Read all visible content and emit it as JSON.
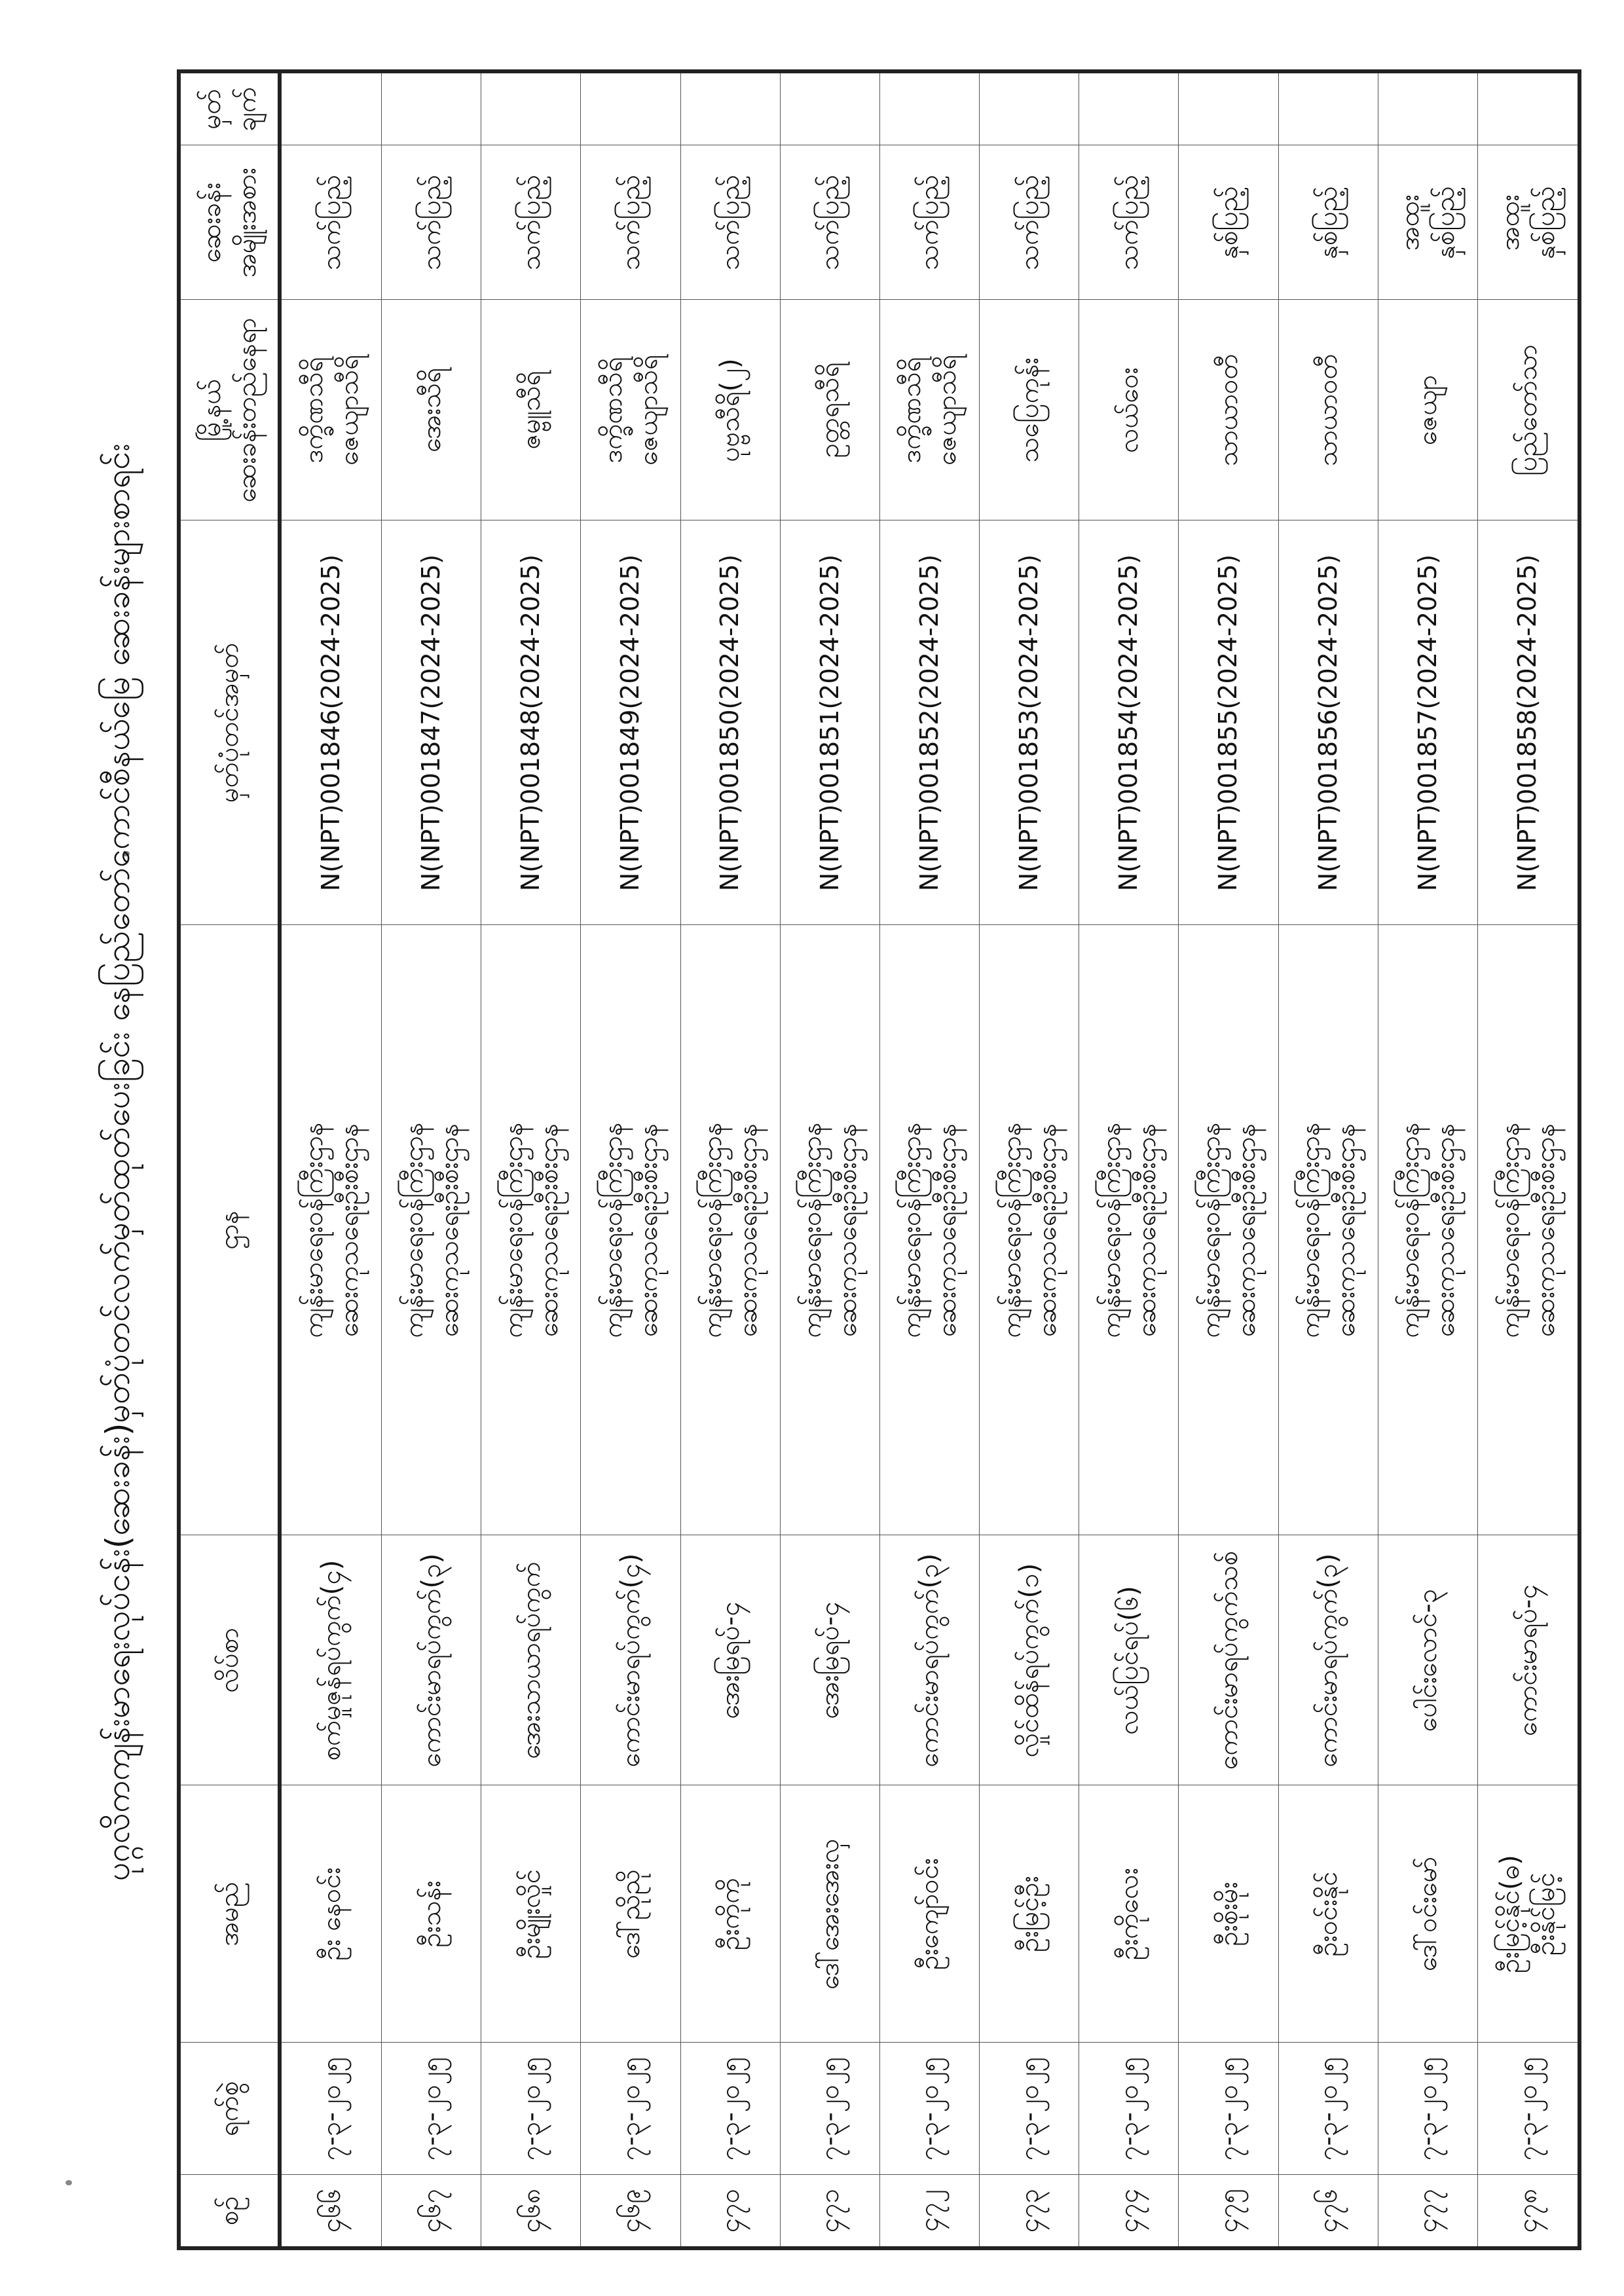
{
  "title": "ပုဂ္ဂလိကကျန်းမာရေးလုပ်ငန်း(ဆေးခန်း)မှတ်ပုံတင်လက်မှတ်ထုတ်ပေးခြင်း နေပြည်တော်ကောင်စီနယ်မြေ ဆေးခန်းများစာရင်း",
  "columns": [
    "စဉ်",
    "ရက်စွဲ",
    "အမည်",
    "လိပ်စာ",
    "ဌာန",
    "မှတ်ပုံတင်အမှတ်",
    "မြို့နယ်\nဆေးခန်းတည်နေရာ",
    "ဆေးခန်း\nအမျိုးအစား",
    "မှတ်\nချက်"
  ],
  "rows": [
    {
      "no": "၄၆၆",
      "date": "၇-၃-၂၀၂၅",
      "name": "ဦး နေဝင်း",
      "address": "စက်မှုဇုန်ရပ်ကွက်(၄)",
      "dept": "ကျန်းမာရေးဝန်ကြီးဌာန\nဆေးကုသရေးဦးစီးဌာန",
      "reg": "N(NPT)001846(2024-2025)",
      "township": "ဒက္ခိဏသီရိ\nဇေယျာသီရိ",
      "type": "သက်ပြည့်",
      "remark": ""
    },
    {
      "no": "၄၆၇",
      "date": "၇-၃-၂၀၂၅",
      "name": "ဦးသန်း",
      "address": "ကောင်းမာရပ်ကွက်(၃)",
      "dept": "ကျန်းမာရေးဝန်ကြီးဌာန\nဆေးကုသရေးဦးစီးဌာန",
      "reg": "N(NPT)001847(2024-2025)",
      "township": "အေးသီရိ",
      "type": "သက်ပြည့်",
      "remark": ""
    },
    {
      "no": "၄၆၈",
      "date": "၇-၃-၂၀၂၅",
      "name": "ဦးမျိုးလှိုင်",
      "address": "အေးသာယာရပ်ကွက်",
      "dept": "ကျန်းမာရေးဝန်ကြီးဌာန\nဆေးကုသရေးဦးစီးဌာန",
      "reg": "N(NPT)001848(2024-2025)",
      "township": "ဇမ္ဗူသီရိ",
      "type": "သက်ပြည့်",
      "remark": ""
    },
    {
      "no": "၄၆၉",
      "date": "၇-၃-၂၀၂၅",
      "name": "ဒေါ်ညိုညို",
      "address": "ကောင်းမာရပ်ကွက်(၄)",
      "dept": "ကျန်းမာရေးဝန်ကြီးဌာန\nဆေးကုသရေးဦးစီးဌာန",
      "reg": "N(NPT)001849(2024-2025)",
      "township": "ဒက္ခိဏသီရိ\nဇေယျာသီရိ",
      "type": "သက်ပြည့်",
      "remark": ""
    },
    {
      "no": "၄၇၀",
      "date": "၇-၃-၂၀၂၅",
      "name": "ဦးကိုကို",
      "address": "အေးမြရပ်-၄",
      "dept": "ကျန်းမာရေးဝန်ကြီးဌာန\nဆေးကုသရေးဦးစီးဌာန",
      "reg": "N(NPT)001850(2024-2025)",
      "township": "ပုဗ္ဗသီရိ(၂)",
      "type": "သက်ပြည့်",
      "remark": ""
    },
    {
      "no": "၄၇၁",
      "date": "၇-၃-၂၀၂၅",
      "name": "ဒေါ်အေးအေးလှ",
      "address": "အေးမြရပ်-၄",
      "dept": "ကျန်းမာရေးဝန်ကြီးဌာန\nဆေးကုသရေးဦးစီးဌာန",
      "reg": "N(NPT)001851(2024-2025)",
      "township": "ဥတ္တရသီရိ",
      "type": "သက်ပြည့်",
      "remark": ""
    },
    {
      "no": "၄၇၂",
      "date": "၇-၃-၂၀၂၅",
      "name": "ဦးကျော်ဝင်း",
      "address": "ကောင်းမာရပ်ကွက်(၃)",
      "dept": "ကျန်းမာရေးဝန်ကြီးဌာန\nဆေးကုသရေးဦးစီးဌာန",
      "reg": "N(NPT)001852(2024-2025)",
      "township": "ဒက္ခိဏသီရိ\nဇေယျာသီရိ",
      "type": "သက်ပြည့်",
      "remark": ""
    },
    {
      "no": "၄၇၃",
      "date": "၇-၃-၂၀၂၅",
      "name": "ဦးမြင့်ဦး",
      "address": "လှိုင်ထိန်ရပ်ကွက်(၁)",
      "dept": "ကျန်းမာရေးဝန်ကြီးဌာန\nဆေးကုသရေးဦးစီးဌာန",
      "reg": "N(NPT)001853(2024-2025)",
      "township": "သပြေကုန်း",
      "type": "သက်ပြည့်",
      "remark": ""
    },
    {
      "no": "၄၇၄",
      "date": "၇-၃-၂၀၂၅",
      "name": "ဦးကိုလေး",
      "address": "လယ်ပြင်ရပ်(၆)",
      "dept": "ကျန်းမာရေးဝန်ကြီးဌာန\nဆေးကုသရေးဦးစီးဌာန",
      "reg": "N(NPT)001854(2024-2025)",
      "township": "လယ်ဝေး",
      "type": "သက်ပြည့်",
      "remark": ""
    },
    {
      "no": "၄၇၅",
      "date": "၇-၃-၂၀၂၅",
      "name": "ဦးစိုးမိုး",
      "address": "ကောင်းမာရပ်ကွက်သစ်",
      "dept": "ကျန်းမာရေးဝန်ကြီးဌာန\nဆေးကုသရေးဦးစီးဌာန",
      "reg": "N(NPT)001855(2024-2025)",
      "township": "သာယာဝတီ",
      "type": "နှစ်ပြည့်",
      "remark": ""
    },
    {
      "no": "၄၇၆",
      "date": "၇-၃-၂၀၂၅",
      "name": "ဦးဝင်းနိုင်",
      "address": "ကောင်းမာရပ်ကွက်(၃)",
      "dept": "ကျန်းမာရေးဝန်ကြီးဌာန\nဆေးကုသရေးဦးစီးဌာန",
      "reg": "N(NPT)001856(2024-2025)",
      "township": "သာယာဝတီ",
      "type": "နှစ်ပြည့်",
      "remark": ""
    },
    {
      "no": "၄၇၇",
      "date": "၇-၃-၂၀၂၅",
      "name": "ဒေါ်ဝင်းမော်",
      "address": "ပေါင်းလောင်-၃",
      "dept": "ကျန်းမာရေးဝန်ကြီးဌာန\nဆေးကုသရေးဦးစီးဌာန",
      "reg": "N(NPT)001857(2024-2025)",
      "township": "ဇေယျာ",
      "type": "အထူး\nနှစ်ပြည့်",
      "remark": ""
    },
    {
      "no": "၄၇၈",
      "date": "၇-၃-၂၀၂၅",
      "name": "ဦးမြင့်နိုင်(ဓ)\nဦးနိုင်မြင့်",
      "address": "ကောင်းမာရပ်-၄",
      "dept": "ကျန်းမာရေးဝန်ကြီးဌာန\nဆေးကုသရေးဦးစီးဌာန",
      "reg": "N(NPT)001858(2024-2025)",
      "township": "ပြည်တော်သာ",
      "type": "အထူး\nနှစ်ပြည့်",
      "remark": ""
    }
  ]
}
